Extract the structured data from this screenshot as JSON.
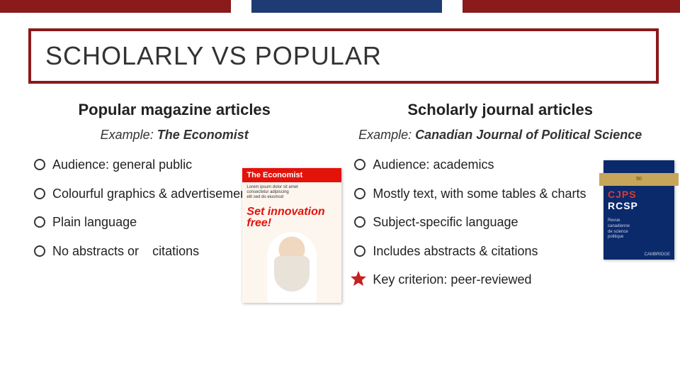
{
  "colors": {
    "stripe": [
      "#8b1a1a",
      "#ffffff",
      "#1f3b73",
      "#ffffff",
      "#8b1a1a"
    ],
    "stripe_widths_pct": [
      34,
      3,
      28,
      3,
      32
    ],
    "title_border": "#8b1a1a",
    "economist_red": "#e3120b",
    "journal_blue": "#0b2a6b",
    "star": "#c62121"
  },
  "title": "SCHOLARLY VS POPULAR",
  "left": {
    "heading": "Popular magazine articles",
    "example_label": "Example:",
    "example_name": "The Economist",
    "bullets": [
      "Audience: general public",
      "Colourful graphics & advertisements",
      "Plain language"
    ],
    "split_bullet_a": "No abstracts or",
    "split_bullet_b": "citations",
    "cover": {
      "masthead": "The Economist",
      "headline": "Set innovation free!"
    }
  },
  "right": {
    "heading": "Scholarly journal articles",
    "example_label": "Example:",
    "example_name": "Canadian Journal of Political Science",
    "bullets": [
      "Audience: academics",
      "Mostly text, with some tables & charts",
      "Subject-specific language",
      "Includes abstracts & citations"
    ],
    "star_bullet": "Key criterion: peer-reviewed",
    "cover": {
      "banner": "50",
      "title_a": "CJPS",
      "title_b": "RCSP",
      "publisher": "CAMBRIDGE"
    }
  }
}
